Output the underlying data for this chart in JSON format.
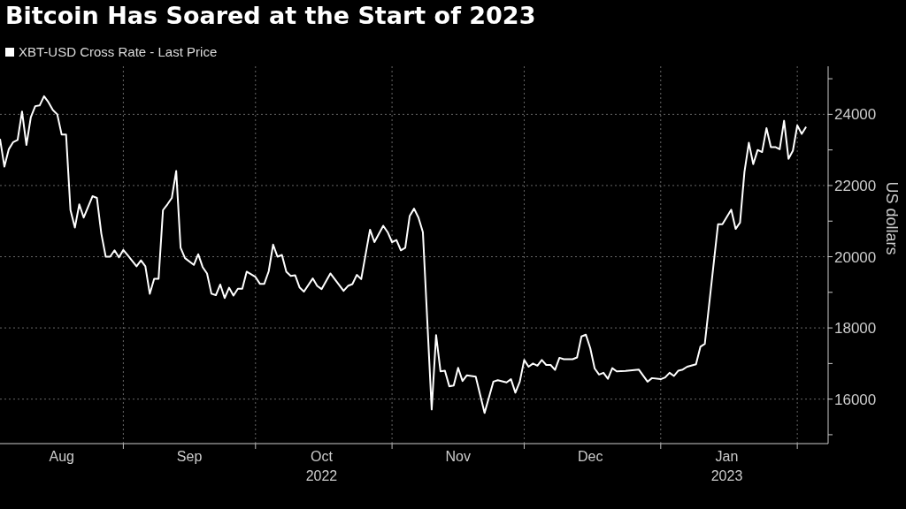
{
  "chart_data": {
    "type": "line",
    "title": "Bitcoin Has Soared at the Start of 2023",
    "ylabel": "US dollars",
    "legend": "top left",
    "grid": true,
    "xlim": [
      "2022-08-04",
      "2023-02-08"
    ],
    "xticks": [
      {
        "value": "2022-08-18",
        "label": "Aug"
      },
      {
        "value": "2022-09-01",
        "label": null
      },
      {
        "value": "2022-09-16",
        "label": "Sep"
      },
      {
        "value": "2022-10-01",
        "label": null
      },
      {
        "value": "2022-10-16",
        "label": "Oct\n2022"
      },
      {
        "value": "2022-11-01",
        "label": null
      },
      {
        "value": "2022-11-16",
        "label": "Nov"
      },
      {
        "value": "2022-12-01",
        "label": null
      },
      {
        "value": "2022-12-16",
        "label": "Dec"
      },
      {
        "value": "2023-01-01",
        "label": null
      },
      {
        "value": "2023-01-16",
        "label": "Jan\n2023"
      },
      {
        "value": "2023-02-01",
        "label": null
      }
    ],
    "ylim": [
      14750,
      25350
    ],
    "yticks": [
      {
        "value": 15000,
        "label": null
      },
      16000,
      {
        "value": 17000,
        "label": null
      },
      18000,
      {
        "value": 19000,
        "label": null
      },
      20000,
      {
        "value": 21000,
        "label": null
      },
      22000,
      {
        "value": 23000,
        "label": null
      },
      24000,
      {
        "value": 25000,
        "label": null
      }
    ],
    "series": [
      {
        "name": "XBT-USD Cross Rate - Last Price",
        "color": "#ffffff",
        "x": [
          "2022-08-04",
          "2022-08-05",
          "2022-08-06",
          "2022-08-07",
          "2022-08-08",
          "2022-08-09",
          "2022-08-10",
          "2022-08-11",
          "2022-08-12",
          "2022-08-13",
          "2022-08-14",
          "2022-08-15",
          "2022-08-16",
          "2022-08-17",
          "2022-08-18",
          "2022-08-19",
          "2022-08-20",
          "2022-08-21",
          "2022-08-22",
          "2022-08-23",
          "2022-08-25",
          "2022-08-26",
          "2022-08-27",
          "2022-08-28",
          "2022-08-29",
          "2022-08-30",
          "2022-08-31",
          "2022-09-01",
          "2022-09-02",
          "2022-09-04",
          "2022-09-05",
          "2022-09-06",
          "2022-09-07",
          "2022-09-08",
          "2022-09-09",
          "2022-09-10",
          "2022-09-11",
          "2022-09-12",
          "2022-09-13",
          "2022-09-14",
          "2022-09-15",
          "2022-09-17",
          "2022-09-18",
          "2022-09-19",
          "2022-09-20",
          "2022-09-21",
          "2022-09-22",
          "2022-09-23",
          "2022-09-24",
          "2022-09-25",
          "2022-09-26",
          "2022-09-27",
          "2022-09-28",
          "2022-09-29",
          "2022-10-01",
          "2022-10-02",
          "2022-10-03",
          "2022-10-04",
          "2022-10-05",
          "2022-10-06",
          "2022-10-07",
          "2022-10-08",
          "2022-10-09",
          "2022-10-10",
          "2022-10-11",
          "2022-10-12",
          "2022-10-14",
          "2022-10-15",
          "2022-10-16",
          "2022-10-18",
          "2022-10-21",
          "2022-10-22",
          "2022-10-23",
          "2022-10-24",
          "2022-10-25",
          "2022-10-27",
          "2022-10-28",
          "2022-10-30",
          "2022-10-31",
          "2022-11-01",
          "2022-11-02",
          "2022-11-03",
          "2022-11-04",
          "2022-11-05",
          "2022-11-06",
          "2022-11-07",
          "2022-11-08",
          "2022-11-10",
          "2022-11-11",
          "2022-11-12",
          "2022-11-13",
          "2022-11-14",
          "2022-11-15",
          "2022-11-16",
          "2022-11-17",
          "2022-11-18",
          "2022-11-20",
          "2022-11-22",
          "2022-11-24",
          "2022-11-25",
          "2022-11-27",
          "2022-11-28",
          "2022-11-29",
          "2022-11-30",
          "2022-12-01",
          "2022-12-02",
          "2022-12-03",
          "2022-12-04",
          "2022-12-05",
          "2022-12-06",
          "2022-12-07",
          "2022-12-08",
          "2022-12-09",
          "2022-12-10",
          "2022-12-12",
          "2022-12-13",
          "2022-12-14",
          "2022-12-15",
          "2022-12-16",
          "2022-12-17",
          "2022-12-18",
          "2022-12-19",
          "2022-12-20",
          "2022-12-21",
          "2022-12-22",
          "2022-12-24",
          "2022-12-27",
          "2022-12-29",
          "2022-12-30",
          "2023-01-01",
          "2023-01-02",
          "2023-01-03",
          "2023-01-04",
          "2023-01-05",
          "2023-01-06",
          "2023-01-07",
          "2023-01-09",
          "2023-01-10",
          "2023-01-11",
          "2023-01-14",
          "2023-01-15",
          "2023-01-17",
          "2023-01-18",
          "2023-01-19",
          "2023-01-20",
          "2023-01-21",
          "2023-01-22",
          "2023-01-23",
          "2023-01-24",
          "2023-01-25",
          "2023-01-26",
          "2023-01-27",
          "2023-01-28",
          "2023-01-29",
          "2023-01-30",
          "2023-01-31",
          "2023-02-01",
          "2023-02-02",
          "2023-02-03"
        ],
        "values": [
          23310,
          22530,
          23020,
          23220,
          23280,
          24080,
          23140,
          23920,
          24230,
          24250,
          24510,
          24340,
          24120,
          24000,
          23430,
          23430,
          21310,
          20820,
          21470,
          21100,
          21700,
          21650,
          20650,
          20000,
          20000,
          20180,
          19980,
          20190,
          20040,
          19730,
          19900,
          19730,
          18960,
          19380,
          19380,
          21310,
          21470,
          21650,
          22410,
          20250,
          19960,
          19770,
          20070,
          19710,
          19530,
          18960,
          18920,
          19220,
          18840,
          19130,
          18910,
          19100,
          19100,
          19580,
          19430,
          19240,
          19240,
          19590,
          20340,
          20000,
          20050,
          19580,
          19460,
          19480,
          19140,
          19020,
          19390,
          19180,
          19090,
          19530,
          19040,
          19180,
          19230,
          19490,
          19370,
          20760,
          20410,
          20870,
          20690,
          20410,
          20470,
          20180,
          20250,
          21140,
          21350,
          21100,
          20690,
          15710,
          17800,
          16780,
          16800,
          16360,
          16380,
          16880,
          16510,
          16670,
          16630,
          15610,
          16490,
          16530,
          16470,
          16560,
          16180,
          16490,
          17100,
          16910,
          17000,
          16940,
          17100,
          16960,
          16960,
          16820,
          17160,
          17120,
          17120,
          17170,
          17760,
          17810,
          17430,
          16860,
          16690,
          16740,
          16570,
          16870,
          16780,
          16790,
          16830,
          16490,
          16590,
          16560,
          16610,
          16740,
          16650,
          16800,
          16830,
          16910,
          16980,
          17470,
          17550,
          20910,
          20910,
          21320,
          20780,
          20960,
          22380,
          23200,
          22600,
          23000,
          22940,
          23610,
          23080,
          23080,
          23020,
          23820,
          22750,
          22980,
          23690,
          23450,
          23650
        ]
      }
    ]
  }
}
